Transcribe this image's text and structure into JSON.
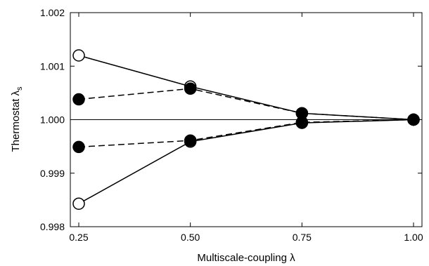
{
  "chart_data": {
    "type": "line",
    "xlabel": "Multiscale-coupling λ",
    "ylabel_main": "Thermostat λ",
    "ylabel_sub": "s",
    "xlim": [
      0.25,
      1.0
    ],
    "ylim": [
      0.998,
      1.002
    ],
    "x_ticks": [
      0.25,
      0.5,
      0.75,
      1.0
    ],
    "x_tick_labels": [
      "0.25",
      "0.50",
      "0.75",
      "1.00"
    ],
    "y_ticks": [
      0.998,
      0.999,
      1.0,
      1.001,
      1.002
    ],
    "y_tick_labels": [
      "0.998",
      "0.999",
      "1.000",
      "1.001",
      "1.002"
    ],
    "reference_line": 1.0,
    "grid": false,
    "series": [
      {
        "line_style": "solid",
        "marker": "open-circle",
        "x": [
          0.25,
          0.5,
          0.75,
          1.0
        ],
        "y": [
          1.0012,
          1.00062,
          1.00012,
          1.0
        ]
      },
      {
        "line_style": "solid",
        "marker": "open-circle",
        "x": [
          0.25,
          0.5,
          0.75,
          1.0
        ],
        "y": [
          0.99843,
          0.99959,
          0.99994,
          1.0
        ]
      },
      {
        "line_style": "dashed",
        "marker": "filled-circle",
        "x": [
          0.25,
          0.5,
          0.75,
          1.0
        ],
        "y": [
          1.00038,
          1.00058,
          1.00012,
          1.0
        ]
      },
      {
        "line_style": "dashed",
        "marker": "filled-circle",
        "x": [
          0.25,
          0.5,
          0.75,
          1.0
        ],
        "y": [
          0.99949,
          0.99961,
          0.99995,
          1.0
        ]
      }
    ]
  }
}
